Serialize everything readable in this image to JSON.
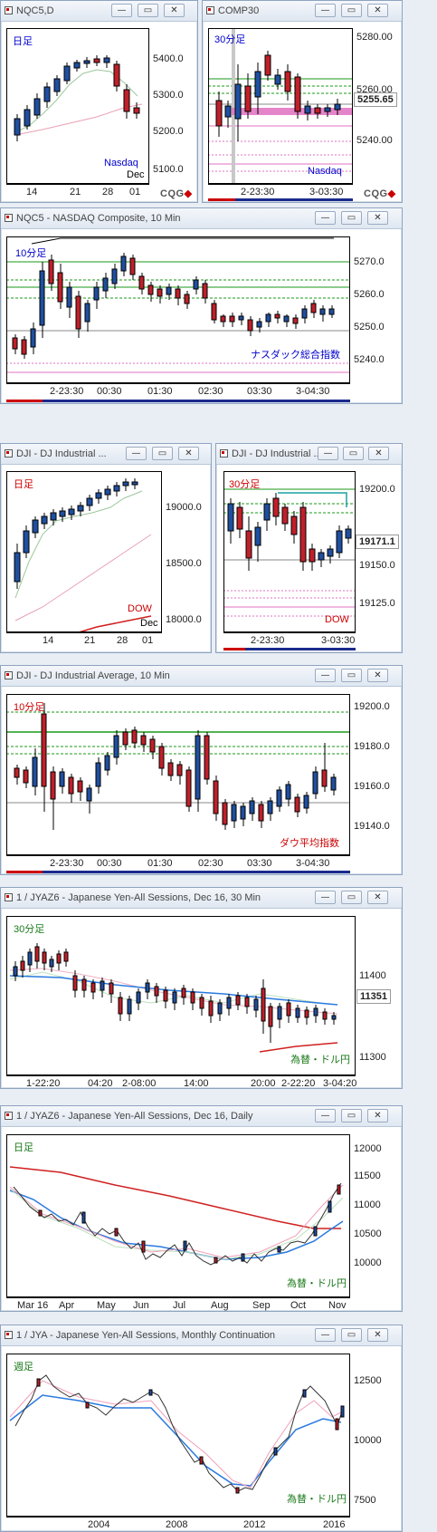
{
  "windows": {
    "w1": {
      "title": "NQC5,D",
      "period": "日足",
      "name": "Nasdaq",
      "yticks": [
        "5400.0",
        "5300.0",
        "5200.0",
        "5100.0"
      ],
      "xticks": [
        "14",
        "21",
        "28",
        "01"
      ],
      "month": "Dec"
    },
    "w2": {
      "title": "COMP30",
      "period": "30分足",
      "name": "Nasdaq",
      "yticks": [
        "5280.00",
        "5260.00",
        "5240.00"
      ],
      "last": "5255.65",
      "xticks": [
        "2-23:30",
        "3-03:30"
      ]
    },
    "w3": {
      "title": "NQC5 - NASDAQ Composite, 10 Min",
      "period": "10分足",
      "name": "ナスダック総合指数",
      "yticks": [
        "5270.0",
        "5260.0",
        "5250.0",
        "5240.0"
      ],
      "xticks": [
        "2-23:30",
        "00:30",
        "01:30",
        "02:30",
        "03:30",
        "3-04:30"
      ]
    },
    "w4": {
      "title": "DJI - DJ Industrial ...",
      "period": "日足",
      "name": "DOW",
      "yticks": [
        "19000.0",
        "18500.0",
        "18000.0"
      ],
      "xticks": [
        "14",
        "21",
        "28",
        "01"
      ],
      "month": "Dec"
    },
    "w5": {
      "title": "DJI - DJ Industrial ...",
      "period": "30分足",
      "name": "DOW",
      "yticks": [
        "19200.0",
        "19150.0",
        "19125.0"
      ],
      "last": "19171.1",
      "xticks": [
        "2-23:30",
        "3-03:30"
      ]
    },
    "w6": {
      "title": "DJI - DJ Industrial Average, 10 Min",
      "period": "10分足",
      "name": "ダウ平均指数",
      "yticks": [
        "19200.0",
        "19180.0",
        "19160.0",
        "19140.0"
      ],
      "xticks": [
        "2-23:30",
        "00:30",
        "01:30",
        "02:30",
        "03:30",
        "3-04:30"
      ]
    },
    "w7": {
      "title": "1 / JYAZ6 - Japanese Yen-All Sessions, Dec 16, 30 Min",
      "period": "30分足",
      "name": "為替・ドル円",
      "yticks": [
        "11400",
        "11300"
      ],
      "last": "11351",
      "xticks": [
        "1-22:20",
        "04:20",
        "2-08:00",
        "14:00",
        "20:00",
        "2-22:20",
        "3-04:20"
      ]
    },
    "w8": {
      "title": "1 / JYAZ6 - Japanese Yen-All Sessions, Dec 16, Daily",
      "period": "日足",
      "name": "為替・ドル円",
      "yticks": [
        "12000",
        "11500",
        "11000",
        "10500",
        "10000"
      ],
      "xticks": [
        "Mar 16",
        "Apr",
        "May",
        "Jun",
        "Jul",
        "Aug",
        "Sep",
        "Oct",
        "Nov"
      ]
    },
    "w9": {
      "title": "1 / JYA - Japanese Yen-All Sessions, Monthly Continuation",
      "period": "週足",
      "name": "為替・ドル円",
      "yticks": [
        "12500",
        "10000",
        "7500"
      ],
      "xticks": [
        "2004",
        "2008",
        "2012",
        "2016"
      ]
    }
  },
  "buttons": {
    "minimize": "—",
    "restore": "▭",
    "close": "✕"
  },
  "brand": {
    "text": "CQG",
    "accent": "◆"
  },
  "colors": {
    "up": "#1f4fa0",
    "down": "#c0202a",
    "green": "#1a9a1a",
    "pink": "#e070c0",
    "frame": "#000000",
    "title_blue": "#0000cc",
    "title_red": "#cc0000"
  }
}
